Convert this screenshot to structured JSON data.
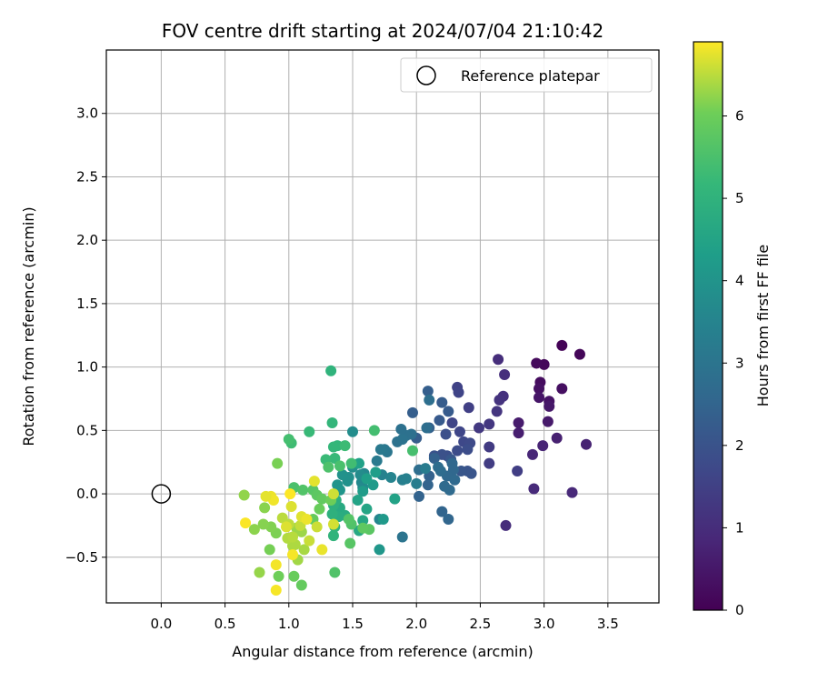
{
  "chart_data": {
    "type": "scatter",
    "title": "FOV centre drift starting at 2024/07/04 21:10:42",
    "xlabel": "Angular distance from reference (arcmin)",
    "ylabel": "Rotation from reference (arcmin)",
    "xlim": [
      -0.43,
      3.9
    ],
    "ylim": [
      -0.86,
      3.5
    ],
    "xticks": [
      "0.0",
      "0.5",
      "1.0",
      "1.5",
      "2.0",
      "2.5",
      "3.0",
      "3.5"
    ],
    "xtick_values": [
      0,
      0.5,
      1.0,
      1.5,
      2.0,
      2.5,
      3.0,
      3.5
    ],
    "yticks": [
      "−0.5",
      "0.0",
      "0.5",
      "1.0",
      "1.5",
      "2.0",
      "2.5",
      "3.0"
    ],
    "ytick_values": [
      -0.5,
      0,
      0.5,
      1.0,
      1.5,
      2.0,
      2.5,
      3.0
    ],
    "grid": true,
    "legend_position": "top-right",
    "reference": {
      "name": "Reference platepar",
      "x": 0.0,
      "y": 0.0
    },
    "colorbar": {
      "label": "Hours from first FF file",
      "min": 0,
      "max": 6.9,
      "ticks": [
        "0",
        "1",
        "2",
        "3",
        "4",
        "5",
        "6"
      ],
      "tick_values": [
        0,
        1,
        2,
        3,
        4,
        5,
        6
      ],
      "colormap": "viridis"
    },
    "points": [
      [
        3.14,
        1.17,
        0.05
      ],
      [
        3.28,
        1.1,
        0.1
      ],
      [
        3.0,
        1.02,
        0.15
      ],
      [
        2.94,
        1.03,
        0.2
      ],
      [
        2.97,
        0.88,
        0.25
      ],
      [
        3.14,
        0.83,
        0.3
      ],
      [
        2.96,
        0.83,
        0.35
      ],
      [
        3.04,
        0.73,
        0.4
      ],
      [
        2.96,
        0.76,
        0.45
      ],
      [
        3.04,
        0.69,
        0.5
      ],
      [
        3.03,
        0.57,
        0.55
      ],
      [
        2.8,
        0.56,
        0.6
      ],
      [
        2.8,
        0.48,
        0.65
      ],
      [
        3.1,
        0.44,
        0.7
      ],
      [
        3.33,
        0.39,
        0.75
      ],
      [
        2.99,
        0.38,
        0.8
      ],
      [
        2.91,
        0.31,
        0.85
      ],
      [
        3.22,
        0.01,
        0.9
      ],
      [
        2.92,
        0.04,
        0.95
      ],
      [
        2.7,
        -0.25,
        1.0
      ],
      [
        2.64,
        1.06,
        1.02
      ],
      [
        2.69,
        0.94,
        1.05
      ],
      [
        2.68,
        0.77,
        1.1
      ],
      [
        2.65,
        0.74,
        1.15
      ],
      [
        2.63,
        0.65,
        1.2
      ],
      [
        2.57,
        0.55,
        1.25
      ],
      [
        2.49,
        0.52,
        1.3
      ],
      [
        2.57,
        0.37,
        1.35
      ],
      [
        2.57,
        0.24,
        1.4
      ],
      [
        2.79,
        0.18,
        1.45
      ],
      [
        2.41,
        0.68,
        1.5
      ],
      [
        2.32,
        0.84,
        1.55
      ],
      [
        2.33,
        0.8,
        1.6
      ],
      [
        2.28,
        0.56,
        1.62
      ],
      [
        2.34,
        0.49,
        1.65
      ],
      [
        2.37,
        0.41,
        1.7
      ],
      [
        2.42,
        0.4,
        1.75
      ],
      [
        2.32,
        0.34,
        1.8
      ],
      [
        2.4,
        0.35,
        1.85
      ],
      [
        2.23,
        0.47,
        1.88
      ],
      [
        2.24,
        0.3,
        1.9
      ],
      [
        2.2,
        0.31,
        1.95
      ],
      [
        2.14,
        0.3,
        2.0
      ],
      [
        2.4,
        0.18,
        2.02
      ],
      [
        2.43,
        0.16,
        2.05
      ],
      [
        2.35,
        0.18,
        2.1
      ],
      [
        2.27,
        0.27,
        2.15
      ],
      [
        2.18,
        0.58,
        2.2
      ],
      [
        2.25,
        0.65,
        2.22
      ],
      [
        2.2,
        0.72,
        2.25
      ],
      [
        2.0,
        0.44,
        2.28
      ],
      [
        1.97,
        0.64,
        2.3
      ],
      [
        2.09,
        0.81,
        2.35
      ],
      [
        2.1,
        0.52,
        2.38
      ],
      [
        2.14,
        0.28,
        2.4
      ],
      [
        2.1,
        0.14,
        2.42
      ],
      [
        2.02,
        -0.02,
        2.45
      ],
      [
        2.09,
        0.07,
        2.48
      ],
      [
        2.2,
        -0.14,
        2.5
      ],
      [
        2.25,
        -0.2,
        2.55
      ],
      [
        2.28,
        0.24,
        2.58
      ],
      [
        2.29,
        0.19,
        2.6
      ],
      [
        2.24,
        0.14,
        2.62
      ],
      [
        2.3,
        0.11,
        2.65
      ],
      [
        2.22,
        0.06,
        2.68
      ],
      [
        2.26,
        0.03,
        2.7
      ],
      [
        2.19,
        0.18,
        2.72
      ],
      [
        2.17,
        0.21,
        2.75
      ],
      [
        2.02,
        0.19,
        2.78
      ],
      [
        2.08,
        0.52,
        2.8
      ],
      [
        2.1,
        0.74,
        2.82
      ],
      [
        1.96,
        0.47,
        2.85
      ],
      [
        1.92,
        0.46,
        2.88
      ],
      [
        1.88,
        0.51,
        2.9
      ],
      [
        1.85,
        0.41,
        2.92
      ],
      [
        1.89,
        0.43,
        2.95
      ],
      [
        1.89,
        -0.34,
        3.0
      ],
      [
        1.77,
        0.33,
        3.05
      ],
      [
        1.75,
        0.35,
        3.1
      ],
      [
        1.72,
        0.35,
        3.15
      ],
      [
        1.69,
        0.26,
        3.2
      ],
      [
        2.07,
        0.2,
        3.25
      ],
      [
        2.0,
        0.08,
        3.3
      ],
      [
        1.89,
        0.11,
        3.35
      ],
      [
        1.92,
        0.12,
        3.4
      ],
      [
        1.73,
        0.15,
        3.45
      ],
      [
        1.8,
        0.13,
        3.5
      ],
      [
        1.71,
        -0.2,
        3.55
      ],
      [
        1.59,
        0.16,
        3.6
      ],
      [
        1.57,
        0.09,
        3.65
      ],
      [
        1.58,
        0.05,
        3.7
      ],
      [
        1.56,
        0.15,
        3.75
      ],
      [
        1.51,
        0.23,
        3.78
      ],
      [
        1.5,
        0.49,
        3.8
      ],
      [
        1.5,
        0.21,
        3.85
      ],
      [
        1.47,
        0.13,
        3.88
      ],
      [
        1.46,
        0.1,
        3.9
      ],
      [
        1.42,
        0.15,
        3.95
      ],
      [
        1.38,
        0.07,
        4.0
      ],
      [
        1.4,
        0.03,
        4.05
      ],
      [
        1.71,
        -0.44,
        4.1
      ],
      [
        1.74,
        -0.2,
        4.15
      ],
      [
        1.66,
        0.07,
        4.2
      ],
      [
        1.58,
        0.02,
        4.25
      ],
      [
        1.68,
        0.17,
        4.3
      ],
      [
        1.61,
        0.12,
        4.35
      ],
      [
        1.55,
        0.24,
        4.4
      ],
      [
        1.83,
        -0.04,
        4.45
      ],
      [
        1.54,
        -0.05,
        4.5
      ],
      [
        1.61,
        -0.12,
        4.55
      ],
      [
        1.58,
        -0.21,
        4.6
      ],
      [
        1.55,
        -0.29,
        4.65
      ],
      [
        1.4,
        -0.11,
        4.7
      ],
      [
        1.44,
        -0.17,
        4.75
      ],
      [
        1.39,
        -0.18,
        4.8
      ],
      [
        1.37,
        -0.05,
        4.85
      ],
      [
        1.35,
        -0.09,
        4.9
      ],
      [
        1.34,
        -0.16,
        4.95
      ],
      [
        1.36,
        -0.26,
        5.0
      ],
      [
        1.35,
        -0.33,
        5.05
      ],
      [
        1.38,
        0.38,
        5.1
      ],
      [
        1.35,
        0.37,
        5.15
      ],
      [
        1.36,
        0.28,
        5.2
      ],
      [
        1.29,
        0.27,
        5.25
      ],
      [
        1.44,
        0.38,
        5.3
      ],
      [
        1.49,
        0.24,
        5.35
      ],
      [
        1.67,
        0.5,
        5.4
      ],
      [
        1.97,
        0.34,
        5.45
      ],
      [
        1.4,
        0.22,
        5.5
      ],
      [
        1.31,
        0.21,
        5.55
      ],
      [
        1.49,
        -0.24,
        5.6
      ],
      [
        1.47,
        -0.2,
        5.65
      ],
      [
        1.48,
        -0.39,
        5.7
      ],
      [
        1.63,
        -0.28,
        5.75
      ],
      [
        1.58,
        -0.27,
        5.8
      ],
      [
        1.33,
        0.97,
        5.02
      ],
      [
        1.34,
        0.56,
        5.12
      ],
      [
        1.16,
        0.49,
        5.22
      ],
      [
        1.02,
        0.4,
        5.32
      ],
      [
        1.0,
        0.43,
        5.42
      ],
      [
        1.04,
        0.05,
        5.52
      ],
      [
        1.11,
        0.03,
        5.62
      ],
      [
        1.19,
        0.03,
        5.7
      ],
      [
        1.22,
        -0.01,
        5.78
      ],
      [
        1.26,
        -0.04,
        5.85
      ],
      [
        1.19,
        -0.2,
        5.9
      ],
      [
        1.24,
        -0.12,
        5.95
      ],
      [
        1.33,
        -0.05,
        6.0
      ],
      [
        1.36,
        -0.62,
        5.6
      ],
      [
        1.1,
        -0.72,
        5.88
      ],
      [
        1.04,
        -0.65,
        5.95
      ],
      [
        0.92,
        -0.65,
        6.02
      ],
      [
        0.85,
        -0.44,
        6.08
      ],
      [
        0.91,
        0.24,
        6.1
      ],
      [
        0.9,
        -0.31,
        6.12
      ],
      [
        0.86,
        -0.26,
        6.15
      ],
      [
        0.8,
        -0.24,
        6.18
      ],
      [
        0.81,
        -0.11,
        6.2
      ],
      [
        0.73,
        -0.28,
        6.22
      ],
      [
        0.65,
        -0.01,
        6.25
      ],
      [
        0.77,
        -0.62,
        6.28
      ],
      [
        1.06,
        -0.27,
        6.3
      ],
      [
        1.1,
        -0.3,
        6.32
      ],
      [
        1.07,
        -0.52,
        6.35
      ],
      [
        1.12,
        -0.44,
        6.38
      ],
      [
        1.03,
        -0.41,
        6.4
      ],
      [
        1.05,
        -0.4,
        6.42
      ],
      [
        0.99,
        -0.35,
        6.45
      ],
      [
        1.03,
        -0.34,
        6.48
      ],
      [
        0.95,
        -0.19,
        6.5
      ],
      [
        1.0,
        -0.24,
        6.52
      ],
      [
        1.09,
        -0.25,
        6.55
      ],
      [
        1.16,
        -0.37,
        6.58
      ],
      [
        1.22,
        -0.26,
        6.6
      ],
      [
        1.35,
        0.0,
        6.62
      ],
      [
        1.35,
        -0.24,
        6.65
      ],
      [
        1.02,
        -0.1,
        6.7
      ],
      [
        1.1,
        -0.18,
        6.72
      ],
      [
        1.2,
        0.1,
        6.75
      ],
      [
        1.26,
        -0.44,
        6.78
      ],
      [
        0.86,
        -0.02,
        6.8
      ],
      [
        0.88,
        -0.05,
        6.82
      ],
      [
        0.9,
        -0.56,
        6.84
      ],
      [
        0.9,
        -0.76,
        6.86
      ],
      [
        0.66,
        -0.23,
        6.88
      ],
      [
        1.01,
        0.0,
        6.9
      ],
      [
        1.03,
        -0.48,
        6.85
      ],
      [
        1.14,
        -0.2,
        6.8
      ],
      [
        0.82,
        -0.02,
        6.75
      ],
      [
        0.98,
        -0.26,
        6.7
      ]
    ]
  }
}
